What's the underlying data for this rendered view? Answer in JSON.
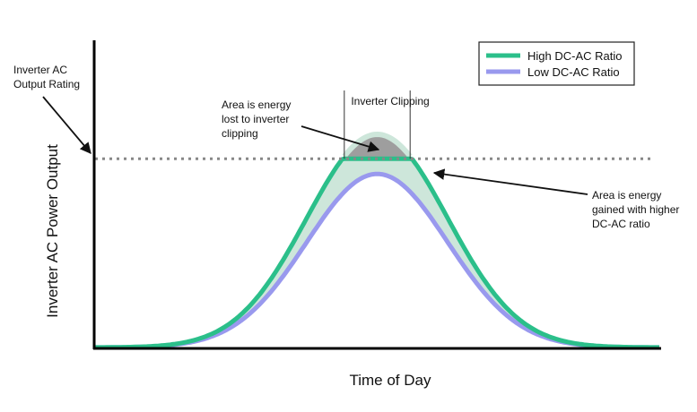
{
  "chart_data": {
    "type": "area",
    "title": "",
    "xlabel": "Time of Day",
    "ylabel": "Inverter AC Power Output",
    "x_range": [
      0,
      24
    ],
    "ylim": [
      0,
      1
    ],
    "grid": false,
    "legend_position": "top-right",
    "inverter_rating": 0.62,
    "series": [
      {
        "name": "High DC-AC Ratio",
        "color": "#2bbf8a",
        "peak_time": 12,
        "peak": 0.7,
        "spread": 3.0,
        "clipped_at_rating": true
      },
      {
        "name": "Low DC-AC Ratio",
        "color": "#9999ee",
        "peak_time": 12,
        "peak": 0.57,
        "spread": 3.0,
        "clipped_at_rating": false
      }
    ],
    "fills": {
      "clipping_loss_color": "#9e9e9e",
      "energy_gain_color": "#cde6da",
      "rating_line_color": "#888888"
    },
    "annotations": {
      "rating_label": [
        "Inverter AC",
        "Output Rating"
      ],
      "clipping_label": "Inverter Clipping",
      "loss_label": [
        "Area is energy",
        "lost to inverter",
        "clipping"
      ],
      "gain_label": [
        "Area is energy",
        "gained with higher",
        "DC-AC ratio"
      ]
    }
  }
}
